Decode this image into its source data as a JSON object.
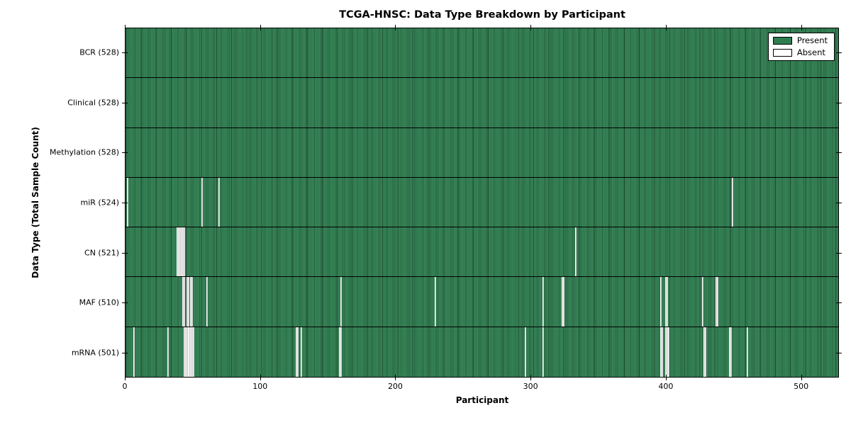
{
  "chart_data": {
    "type": "heatmap",
    "title": "TCGA-HNSC: Data Type Breakdown by Participant",
    "xlabel": "Participant",
    "ylabel": "Data Type (Total Sample Count)",
    "x_ticks": [
      0,
      100,
      200,
      300,
      400,
      500
    ],
    "x_range": [
      0,
      528
    ],
    "total_participants": 528,
    "grid": false,
    "legend_position": "upper right",
    "legend": [
      {
        "label": "Present",
        "color": "#2e7d4f"
      },
      {
        "label": "Absent",
        "color": "#ffffff"
      }
    ],
    "colors": {
      "present": "#2e7d4f",
      "present_stripe_light": "#38875a",
      "present_stripe_dark": "#26603f",
      "absent": "#ececec",
      "border": "#000000"
    },
    "rows": [
      {
        "name": "BCR",
        "label": "BCR (528)",
        "present_count": 528,
        "absent_count": 0,
        "absent_indices": []
      },
      {
        "name": "Clinical",
        "label": "Clinical (528)",
        "present_count": 528,
        "absent_count": 0,
        "absent_indices": []
      },
      {
        "name": "Methylation",
        "label": "Methylation (528)",
        "present_count": 528,
        "absent_count": 0,
        "absent_indices": []
      },
      {
        "name": "miR",
        "label": "miR (524)",
        "present_count": 524,
        "absent_count": 4,
        "absent_indices": [
          1,
          56,
          69,
          449
        ]
      },
      {
        "name": "CN",
        "label": "CN (521)",
        "present_count": 521,
        "absent_count": 7,
        "absent_indices": [
          38,
          39,
          40,
          41,
          42,
          43,
          333
        ]
      },
      {
        "name": "MAF",
        "label": "MAF (510)",
        "present_count": 510,
        "absent_count": 18,
        "absent_indices": [
          42,
          43,
          45,
          46,
          48,
          49,
          60,
          159,
          229,
          309,
          323,
          324,
          396,
          400,
          401,
          427,
          437,
          438
        ]
      },
      {
        "name": "mRNA",
        "label": "mRNA (501)",
        "present_count": 501,
        "absent_count": 27,
        "absent_indices": [
          6,
          31,
          43,
          44,
          45,
          46,
          47,
          48,
          49,
          50,
          126,
          127,
          130,
          158,
          159,
          296,
          309,
          396,
          397,
          400,
          401,
          402,
          428,
          429,
          447,
          448,
          460
        ]
      }
    ]
  }
}
